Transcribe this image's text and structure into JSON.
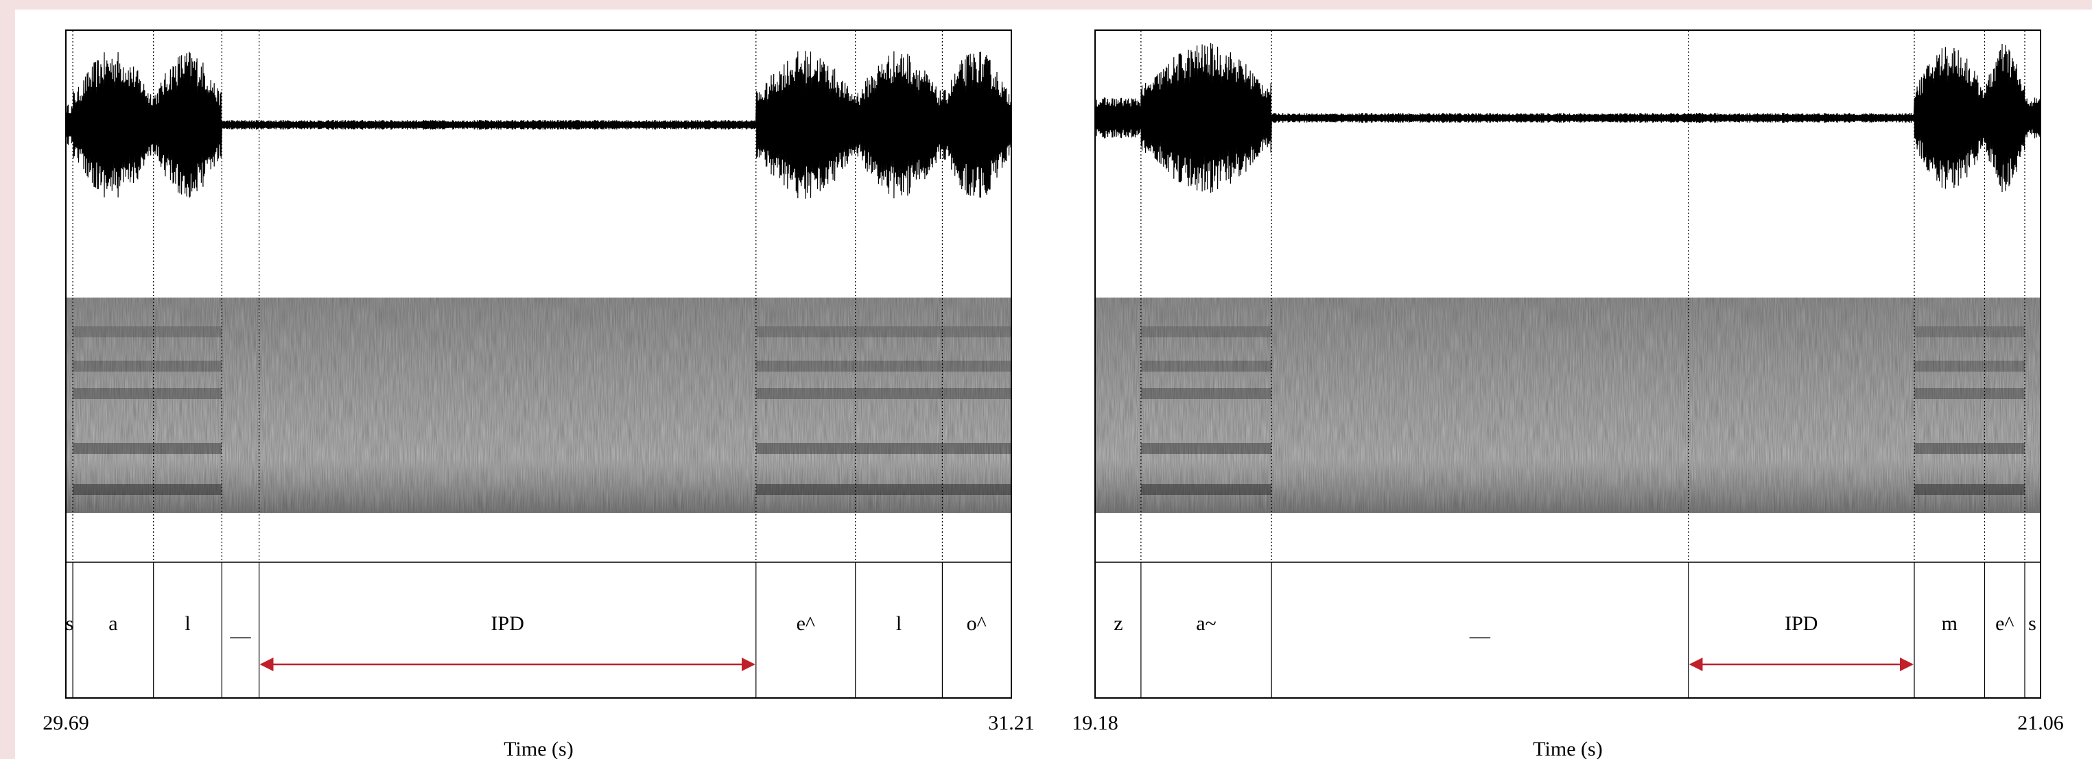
{
  "colors": {
    "background": "#f3e1e1",
    "panel": "#ffffff",
    "waveform": "#000000",
    "ipd_arrow": "#c0202a",
    "boundary": "#000000"
  },
  "panels": [
    {
      "id": "left",
      "time_start_label": "29.69",
      "time_end_label": "31.21",
      "time_start": 29.69,
      "time_end": 31.21,
      "xlabel": "Time (s)",
      "segments": [
        {
          "label": "s",
          "start": 29.69,
          "end": 29.7
        },
        {
          "label": "a",
          "start": 29.7,
          "end": 29.83
        },
        {
          "label": "l",
          "start": 29.83,
          "end": 29.94
        },
        {
          "label": "__",
          "start": 29.94,
          "end": 30.0
        },
        {
          "label": "IPD",
          "start": 30.0,
          "end": 30.8
        },
        {
          "label": "e^",
          "start": 30.8,
          "end": 30.96
        },
        {
          "label": "l",
          "start": 30.96,
          "end": 31.1
        },
        {
          "label": "o^",
          "start": 31.1,
          "end": 31.21
        }
      ],
      "ipd": {
        "start": 30.0,
        "end": 30.8
      }
    },
    {
      "id": "right",
      "time_start_label": "19.18",
      "time_end_label": "21.06",
      "time_start": 19.18,
      "time_end": 21.06,
      "xlabel": "Time (s)",
      "segments": [
        {
          "label": "z",
          "start": 19.18,
          "end": 19.27
        },
        {
          "label": "a~",
          "start": 19.27,
          "end": 19.53
        },
        {
          "label": "__",
          "start": 19.53,
          "end": 20.36
        },
        {
          "label": "IPD",
          "start": 20.36,
          "end": 20.81
        },
        {
          "label": "m",
          "start": 20.81,
          "end": 20.95
        },
        {
          "label": "e^",
          "start": 20.95,
          "end": 21.03
        },
        {
          "label": "s",
          "start": 21.03,
          "end": 21.06
        }
      ],
      "ipd": {
        "start": 20.36,
        "end": 20.81
      }
    }
  ]
}
